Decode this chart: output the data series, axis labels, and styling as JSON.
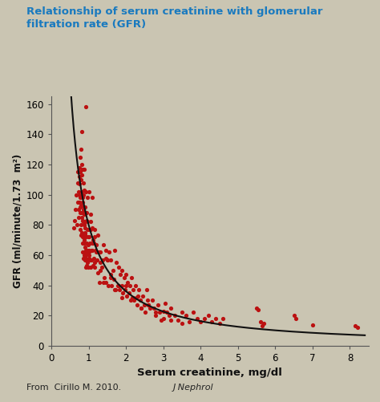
{
  "title_line1": "Relationship of serum creatinine with glomerular",
  "title_line2": "filtration rate (GFR)",
  "title_color": "#1a7abf",
  "xlabel": "Serum creatinine, mg/dl",
  "ylabel": "GFR (ml/minute/1.73  m²)",
  "background_color": "#cac5b2",
  "xlim": [
    0,
    8.5
  ],
  "ylim": [
    0,
    165
  ],
  "xticks": [
    0,
    1,
    2,
    3,
    4,
    5,
    6,
    7,
    8
  ],
  "yticks": [
    0,
    20,
    40,
    60,
    80,
    100,
    120,
    140,
    160
  ],
  "dot_color": "#bb1111",
  "curve_color": "#111111",
  "curve_a": 80.0,
  "curve_b": 1.15,
  "footnote_regular": "From  Cirillo M. 2010. ",
  "footnote_italic": "J Nephrol",
  "scatter_x": [
    0.6,
    0.63,
    0.65,
    0.67,
    0.68,
    0.7,
    0.7,
    0.71,
    0.72,
    0.73,
    0.74,
    0.75,
    0.75,
    0.76,
    0.76,
    0.77,
    0.77,
    0.78,
    0.78,
    0.79,
    0.79,
    0.8,
    0.8,
    0.8,
    0.81,
    0.81,
    0.81,
    0.82,
    0.82,
    0.82,
    0.83,
    0.83,
    0.83,
    0.84,
    0.84,
    0.84,
    0.85,
    0.85,
    0.85,
    0.86,
    0.86,
    0.86,
    0.87,
    0.87,
    0.87,
    0.88,
    0.88,
    0.88,
    0.88,
    0.89,
    0.89,
    0.89,
    0.9,
    0.9,
    0.9,
    0.91,
    0.91,
    0.91,
    0.92,
    0.92,
    0.92,
    0.93,
    0.93,
    0.94,
    0.94,
    0.95,
    0.95,
    0.95,
    0.96,
    0.96,
    0.97,
    0.97,
    0.97,
    0.98,
    0.98,
    0.99,
    0.99,
    1.0,
    1.0,
    1.0,
    1.01,
    1.01,
    1.02,
    1.02,
    1.03,
    1.04,
    1.05,
    1.05,
    1.06,
    1.07,
    1.08,
    1.09,
    1.1,
    1.1,
    1.11,
    1.12,
    1.13,
    1.14,
    1.15,
    1.15,
    1.17,
    1.18,
    1.2,
    1.22,
    1.24,
    1.25,
    1.27,
    1.28,
    1.3,
    1.32,
    1.35,
    1.37,
    1.4,
    1.42,
    1.45,
    1.47,
    1.5,
    1.52,
    1.55,
    1.58,
    1.6,
    1.62,
    1.65,
    1.68,
    1.7,
    1.72,
    1.75,
    1.78,
    1.8,
    1.82,
    1.85,
    1.88,
    1.9,
    1.92,
    1.95,
    1.98,
    2.0,
    2.02,
    2.05,
    2.08,
    2.1,
    2.12,
    2.15,
    2.18,
    2.2,
    2.22,
    2.25,
    2.28,
    2.3,
    2.32,
    2.35,
    2.38,
    2.4,
    2.45,
    2.5,
    2.52,
    2.55,
    2.58,
    2.6,
    2.65,
    2.7,
    2.75,
    2.8,
    2.85,
    2.9,
    2.95,
    3.0,
    3.05,
    3.1,
    3.15,
    3.2,
    3.3,
    3.4,
    3.5,
    3.6,
    3.7,
    3.8,
    3.9,
    4.0,
    4.1,
    4.2,
    4.3,
    4.4,
    4.5,
    4.6,
    5.5,
    5.55,
    5.6,
    5.65,
    5.7,
    6.5,
    6.55,
    7.0,
    8.15,
    8.2,
    1.45,
    0.78,
    0.82,
    0.9,
    0.86,
    0.88,
    0.92,
    0.84,
    0.9,
    0.87,
    0.95,
    0.93,
    1.05,
    1.1,
    1.15,
    1.2,
    1.3,
    1.4,
    1.5,
    1.6,
    1.7,
    1.8,
    1.9,
    2.0,
    2.2,
    2.4,
    2.6,
    2.8,
    3.0,
    3.2,
    3.5,
    0.75,
    0.77,
    0.83,
    0.91
  ],
  "scatter_y": [
    78,
    83,
    90,
    100,
    80,
    95,
    108,
    115,
    102,
    90,
    85,
    118,
    112,
    107,
    95,
    125,
    88,
    115,
    98,
    130,
    110,
    93,
    80,
    73,
    120,
    142,
    113,
    88,
    102,
    75,
    95,
    72,
    117,
    62,
    83,
    98,
    108,
    90,
    68,
    100,
    58,
    82,
    88,
    117,
    73,
    92,
    60,
    87,
    103,
    68,
    88,
    80,
    73,
    62,
    92,
    57,
    82,
    73,
    102,
    158,
    63,
    58,
    72,
    83,
    88,
    53,
    68,
    62,
    77,
    55,
    98,
    82,
    63,
    52,
    72,
    62,
    67,
    77,
    102,
    60,
    63,
    58,
    62,
    72,
    68,
    57,
    82,
    87,
    52,
    63,
    57,
    98,
    78,
    63,
    53,
    70,
    58,
    68,
    77,
    55,
    72,
    63,
    67,
    57,
    73,
    48,
    62,
    42,
    55,
    62,
    52,
    57,
    67,
    45,
    58,
    42,
    57,
    40,
    62,
    47,
    57,
    40,
    50,
    44,
    63,
    37,
    55,
    40,
    52,
    37,
    47,
    40,
    50,
    35,
    45,
    37,
    47,
    33,
    42,
    35,
    40,
    30,
    45,
    32,
    37,
    30,
    40,
    32,
    27,
    33,
    37,
    30,
    25,
    33,
    27,
    22,
    37,
    30,
    27,
    25,
    30,
    25,
    20,
    27,
    22,
    17,
    23,
    28,
    22,
    20,
    25,
    20,
    17,
    22,
    20,
    16,
    22,
    18,
    16,
    18,
    20,
    16,
    18,
    15,
    18,
    25,
    24,
    16,
    13,
    15,
    20,
    18,
    14,
    13,
    12,
    63,
    77,
    85,
    65,
    72,
    70,
    60,
    68,
    75,
    80,
    57,
    52,
    77,
    68,
    52,
    62,
    50,
    42,
    57,
    45,
    37,
    40,
    32,
    40,
    32,
    25,
    27,
    22,
    18,
    17,
    15,
    100,
    92,
    88,
    78
  ]
}
